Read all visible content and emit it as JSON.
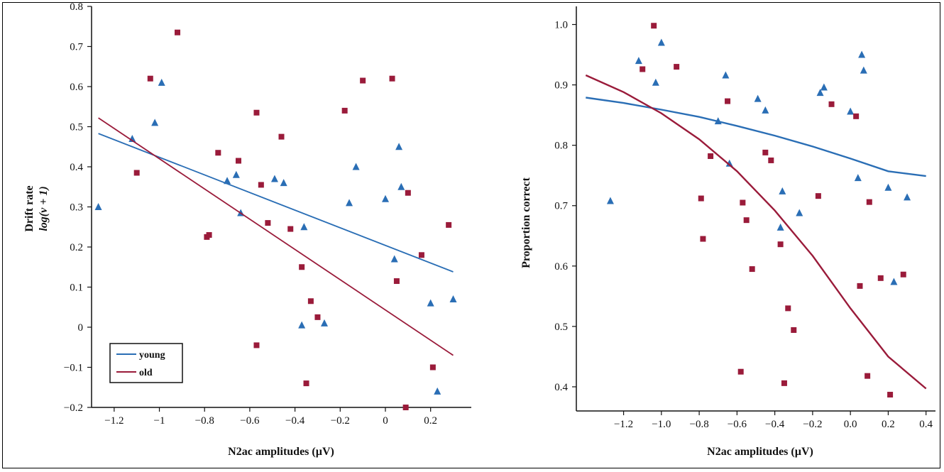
{
  "colors": {
    "young": "#2a6eb5",
    "old": "#9a1b3a",
    "axis": "#111111"
  },
  "legend": {
    "young_label": "young",
    "old_label": "old"
  },
  "chart_data": [
    {
      "type": "scatter",
      "title": "",
      "ylabel_line1": "Drift rate",
      "ylabel_line2": "log(v + 1)",
      "xlabel": "N2ac amplitudes (µV)",
      "xlim": [
        -1.3,
        0.38
      ],
      "ylim": [
        -0.2,
        0.8
      ],
      "xticks": [
        -1.2,
        -1,
        -0.8,
        -0.6,
        -0.4,
        -0.2,
        0,
        0.2
      ],
      "xtick_labels": [
        "−1.2",
        "−1",
        "−0.8",
        "−0.6",
        "−0.4",
        "−0.2",
        "0",
        "0.2"
      ],
      "yticks": [
        -0.2,
        -0.1,
        0,
        0.1,
        0.2,
        0.3,
        0.4,
        0.5,
        0.6,
        0.7,
        0.8
      ],
      "ytick_labels": [
        "−0.2",
        "−0.1",
        "0",
        "0.1",
        "0.2",
        "0.3",
        "0.4",
        "0.5",
        "0.6",
        "0.7",
        "0.8"
      ],
      "legend_position": "bottom-left",
      "series": [
        {
          "name": "young",
          "marker": "triangle",
          "points": [
            [
              -1.27,
              0.3
            ],
            [
              -1.12,
              0.47
            ],
            [
              -1.02,
              0.51
            ],
            [
              -0.99,
              0.61
            ],
            [
              -0.7,
              0.365
            ],
            [
              -0.66,
              0.38
            ],
            [
              -0.64,
              0.285
            ],
            [
              -0.49,
              0.37
            ],
            [
              -0.45,
              0.36
            ],
            [
              -0.37,
              0.005
            ],
            [
              -0.36,
              0.25
            ],
            [
              -0.27,
              0.01
            ],
            [
              -0.16,
              0.31
            ],
            [
              -0.13,
              0.4
            ],
            [
              0,
              0.32
            ],
            [
              0.04,
              0.17
            ],
            [
              0.06,
              0.45
            ],
            [
              0.07,
              0.35
            ],
            [
              0.2,
              0.06
            ],
            [
              0.23,
              -0.16
            ],
            [
              0.3,
              0.07
            ]
          ],
          "trend": [
            [
              -1.27,
              0.483
            ],
            [
              0.3,
              0.138
            ]
          ]
        },
        {
          "name": "old",
          "marker": "square",
          "points": [
            [
              -1.1,
              0.385
            ],
            [
              -1.04,
              0.62
            ],
            [
              -0.92,
              0.735
            ],
            [
              -0.79,
              0.225
            ],
            [
              -0.78,
              0.23
            ],
            [
              -0.74,
              0.435
            ],
            [
              -0.65,
              0.415
            ],
            [
              -0.57,
              0.535
            ],
            [
              -0.57,
              -0.045
            ],
            [
              -0.55,
              0.355
            ],
            [
              -0.52,
              0.26
            ],
            [
              -0.46,
              0.475
            ],
            [
              -0.42,
              0.245
            ],
            [
              -0.37,
              0.15
            ],
            [
              -0.35,
              -0.14
            ],
            [
              -0.33,
              0.065
            ],
            [
              -0.3,
              0.025
            ],
            [
              -0.18,
              0.54
            ],
            [
              -0.1,
              0.615
            ],
            [
              0.03,
              0.62
            ],
            [
              0.05,
              0.115
            ],
            [
              0.09,
              -0.2
            ],
            [
              0.1,
              0.335
            ],
            [
              0.16,
              0.18
            ],
            [
              0.21,
              -0.1
            ],
            [
              0.28,
              0.255
            ]
          ],
          "trend": [
            [
              -1.27,
              0.522
            ],
            [
              0.3,
              -0.07
            ]
          ]
        }
      ]
    },
    {
      "type": "scatter",
      "title": "",
      "ylabel": "Proportion correct",
      "xlabel": "N2ac amplitudes (µV)",
      "xlim": [
        -1.45,
        0.45
      ],
      "ylim": [
        0.36,
        1.03
      ],
      "xticks": [
        -1.2,
        -1.0,
        -0.8,
        -0.6,
        -0.4,
        -0.2,
        0.0,
        0.2,
        0.4
      ],
      "xtick_labels": [
        "−1.2",
        "−1.0",
        "−0.8",
        "−0.6",
        "−0.4",
        "−0.2",
        "0.0",
        "0.2",
        "0.4"
      ],
      "yticks": [
        0.4,
        0.5,
        0.6,
        0.7,
        0.8,
        0.9,
        1.0
      ],
      "ytick_labels": [
        "0.4",
        "0.5",
        "0.6",
        "0.7",
        "0.8",
        "0.9",
        "1.0"
      ],
      "series": [
        {
          "name": "young",
          "marker": "triangle",
          "points": [
            [
              -1.27,
              0.708
            ],
            [
              -1.12,
              0.94
            ],
            [
              -1.03,
              0.904
            ],
            [
              -1.0,
              0.97
            ],
            [
              -0.7,
              0.84
            ],
            [
              -0.66,
              0.916
            ],
            [
              -0.64,
              0.77
            ],
            [
              -0.49,
              0.877
            ],
            [
              -0.45,
              0.858
            ],
            [
              -0.37,
              0.664
            ],
            [
              -0.36,
              0.724
            ],
            [
              -0.27,
              0.688
            ],
            [
              -0.16,
              0.887
            ],
            [
              -0.14,
              0.896
            ],
            [
              0,
              0.856
            ],
            [
              0.04,
              0.746
            ],
            [
              0.06,
              0.95
            ],
            [
              0.07,
              0.924
            ],
            [
              0.2,
              0.73
            ],
            [
              0.23,
              0.574
            ],
            [
              0.3,
              0.714
            ]
          ],
          "trend": [
            [
              -1.4,
              0.879
            ],
            [
              -1.2,
              0.87
            ],
            [
              -1.0,
              0.859
            ],
            [
              -0.8,
              0.847
            ],
            [
              -0.6,
              0.832
            ],
            [
              -0.4,
              0.816
            ],
            [
              -0.2,
              0.798
            ],
            [
              0.0,
              0.778
            ],
            [
              0.2,
              0.757
            ],
            [
              0.4,
              0.749
            ]
          ]
        },
        {
          "name": "old",
          "marker": "square",
          "points": [
            [
              -1.1,
              0.926
            ],
            [
              -1.04,
              0.998
            ],
            [
              -0.92,
              0.93
            ],
            [
              -0.79,
              0.712
            ],
            [
              -0.78,
              0.645
            ],
            [
              -0.74,
              0.782
            ],
            [
              -0.65,
              0.873
            ],
            [
              -0.57,
              0.705
            ],
            [
              -0.58,
              0.425
            ],
            [
              -0.55,
              0.676
            ],
            [
              -0.52,
              0.595
            ],
            [
              -0.45,
              0.788
            ],
            [
              -0.42,
              0.775
            ],
            [
              -0.37,
              0.636
            ],
            [
              -0.35,
              0.406
            ],
            [
              -0.33,
              0.53
            ],
            [
              -0.3,
              0.494
            ],
            [
              -0.17,
              0.716
            ],
            [
              -0.1,
              0.868
            ],
            [
              0.03,
              0.848
            ],
            [
              0.05,
              0.567
            ],
            [
              0.09,
              0.418
            ],
            [
              0.1,
              0.706
            ],
            [
              0.16,
              0.58
            ],
            [
              0.21,
              0.387
            ],
            [
              0.28,
              0.586
            ]
          ],
          "trend": [
            [
              -1.4,
              0.916
            ],
            [
              -1.2,
              0.888
            ],
            [
              -1.0,
              0.853
            ],
            [
              -0.8,
              0.81
            ],
            [
              -0.6,
              0.757
            ],
            [
              -0.4,
              0.692
            ],
            [
              -0.2,
              0.617
            ],
            [
              0.0,
              0.53
            ],
            [
              0.2,
              0.45
            ],
            [
              0.4,
              0.397
            ]
          ]
        }
      ]
    }
  ]
}
